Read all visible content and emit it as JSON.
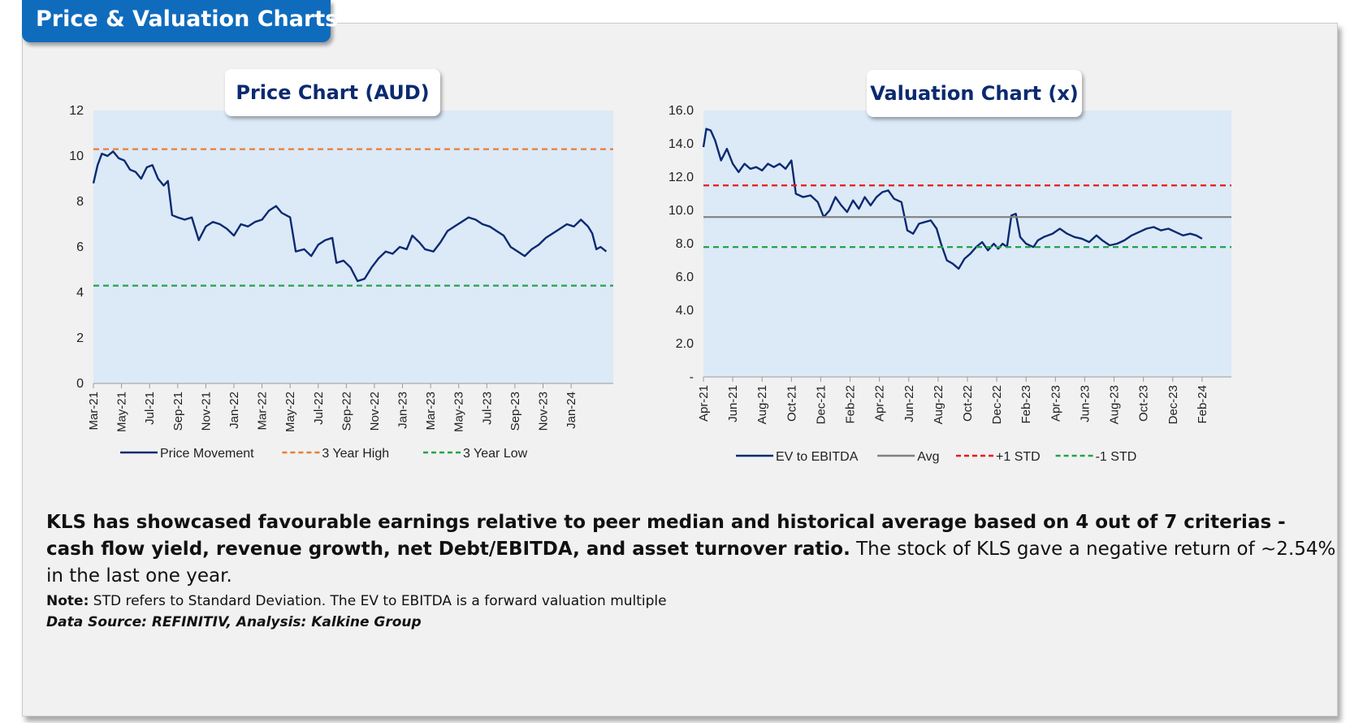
{
  "header": {
    "title": "Price & Valuation Charts"
  },
  "price_chart": {
    "title": "Price Chart (AUD)"
  },
  "valuation_chart": {
    "title": "Valuation Chart (x)"
  },
  "summary": {
    "bold_text": "KLS has showcased favourable earnings relative to peer median and historical average based on 4 out of 7 criterias - cash flow yield, revenue growth, net Debt/EBITDA, and asset turnover ratio.",
    "normal_text": " The stock of KLS gave a negative return of ~2.54% in the last one year."
  },
  "note": {
    "label": "Note:",
    "text": " STD refers to Standard Deviation. The EV to EBITDA is a forward valuation multiple"
  },
  "source": "Data Source: REFINITIV, Analysis: Kalkine Group",
  "colors": {
    "accent": "#0f6cbd",
    "plot_bg": "#dce9f7",
    "series": "#0b2a6f",
    "high": "#ed7d31",
    "low": "#22a34a",
    "avg": "#808080",
    "plus_std": "#e81b1b"
  },
  "chart_data": [
    {
      "type": "line",
      "title": "Price Chart (AUD)",
      "ylim": [
        0,
        12
      ],
      "y_ticks": [
        "0",
        "2",
        "4",
        "6",
        "8",
        "10",
        "12"
      ],
      "x_ticks": [
        "Mar-21",
        "May-21",
        "Jul-21",
        "Sep-21",
        "Nov-21",
        "Jan-22",
        "Mar-22",
        "May-22",
        "Jul-22",
        "Sep-22",
        "Nov-22",
        "Jan-23",
        "Mar-23",
        "May-23",
        "Jul-23",
        "Sep-23",
        "Nov-23",
        "Jan-24"
      ],
      "x_range_months": [
        0,
        37
      ],
      "series": [
        {
          "name": "Price Movement",
          "color": "#0b2a6f",
          "points": [
            [
              0,
              8.8
            ],
            [
              0.3,
              9.6
            ],
            [
              0.6,
              10.1
            ],
            [
              1.0,
              10.0
            ],
            [
              1.4,
              10.2
            ],
            [
              1.8,
              9.9
            ],
            [
              2.2,
              9.8
            ],
            [
              2.6,
              9.4
            ],
            [
              3.0,
              9.3
            ],
            [
              3.4,
              9.0
            ],
            [
              3.8,
              9.5
            ],
            [
              4.2,
              9.6
            ],
            [
              4.6,
              9.0
            ],
            [
              5.0,
              8.7
            ],
            [
              5.3,
              8.9
            ],
            [
              5.6,
              7.4
            ],
            [
              6.0,
              7.3
            ],
            [
              6.5,
              7.2
            ],
            [
              7.0,
              7.3
            ],
            [
              7.5,
              6.3
            ],
            [
              8.0,
              6.9
            ],
            [
              8.5,
              7.1
            ],
            [
              9.0,
              7.0
            ],
            [
              9.5,
              6.8
            ],
            [
              10.0,
              6.5
            ],
            [
              10.5,
              7.0
            ],
            [
              11.0,
              6.9
            ],
            [
              11.5,
              7.1
            ],
            [
              12.0,
              7.2
            ],
            [
              12.5,
              7.6
            ],
            [
              13.0,
              7.8
            ],
            [
              13.4,
              7.5
            ],
            [
              14.0,
              7.3
            ],
            [
              14.4,
              5.8
            ],
            [
              15.0,
              5.9
            ],
            [
              15.5,
              5.6
            ],
            [
              16.0,
              6.1
            ],
            [
              16.5,
              6.3
            ],
            [
              17.0,
              6.4
            ],
            [
              17.3,
              5.3
            ],
            [
              17.8,
              5.4
            ],
            [
              18.3,
              5.1
            ],
            [
              18.8,
              4.5
            ],
            [
              19.3,
              4.6
            ],
            [
              19.8,
              5.1
            ],
            [
              20.3,
              5.5
            ],
            [
              20.8,
              5.8
            ],
            [
              21.3,
              5.7
            ],
            [
              21.8,
              6.0
            ],
            [
              22.3,
              5.9
            ],
            [
              22.7,
              6.5
            ],
            [
              23.2,
              6.2
            ],
            [
              23.6,
              5.9
            ],
            [
              24.2,
              5.8
            ],
            [
              24.7,
              6.2
            ],
            [
              25.2,
              6.7
            ],
            [
              25.7,
              6.9
            ],
            [
              26.2,
              7.1
            ],
            [
              26.7,
              7.3
            ],
            [
              27.2,
              7.2
            ],
            [
              27.7,
              7.0
            ],
            [
              28.2,
              6.9
            ],
            [
              28.7,
              6.7
            ],
            [
              29.2,
              6.5
            ],
            [
              29.7,
              6.0
            ],
            [
              30.2,
              5.8
            ],
            [
              30.7,
              5.6
            ],
            [
              31.2,
              5.9
            ],
            [
              31.7,
              6.1
            ],
            [
              32.2,
              6.4
            ],
            [
              32.7,
              6.6
            ],
            [
              33.2,
              6.8
            ],
            [
              33.7,
              7.0
            ],
            [
              34.2,
              6.9
            ],
            [
              34.7,
              7.2
            ],
            [
              35.2,
              6.9
            ],
            [
              35.5,
              6.6
            ],
            [
              35.8,
              5.9
            ],
            [
              36.1,
              6.0
            ],
            [
              36.5,
              5.8
            ]
          ]
        },
        {
          "name": "3 Year High",
          "color": "#ed7d31",
          "value": 10.3,
          "dash": true
        },
        {
          "name": "3 Year Low",
          "color": "#22a34a",
          "value": 4.3,
          "dash": true
        }
      ]
    },
    {
      "type": "line",
      "title": "Valuation Chart (x)",
      "ylim": [
        0,
        16
      ],
      "y_ticks": [
        "-",
        "2.0",
        "4.0",
        "6.0",
        "8.0",
        "10.0",
        "12.0",
        "14.0",
        "16.0"
      ],
      "x_ticks": [
        "Apr-21",
        "Jun-21",
        "Aug-21",
        "Oct-21",
        "Dec-21",
        "Feb-22",
        "Apr-22",
        "Jun-22",
        "Aug-22",
        "Oct-22",
        "Dec-22",
        "Feb-23",
        "Apr-23",
        "Jun-23",
        "Aug-23",
        "Oct-23",
        "Dec-23",
        "Feb-24"
      ],
      "x_range_months": [
        0,
        36
      ],
      "series": [
        {
          "name": "EV to EBITDA",
          "color": "#0b2a6f",
          "points": [
            [
              0,
              13.8
            ],
            [
              0.2,
              14.9
            ],
            [
              0.5,
              14.8
            ],
            [
              0.8,
              14.2
            ],
            [
              1.2,
              13.0
            ],
            [
              1.6,
              13.7
            ],
            [
              2.0,
              12.8
            ],
            [
              2.4,
              12.3
            ],
            [
              2.8,
              12.8
            ],
            [
              3.2,
              12.5
            ],
            [
              3.6,
              12.6
            ],
            [
              4.0,
              12.4
            ],
            [
              4.4,
              12.8
            ],
            [
              4.8,
              12.6
            ],
            [
              5.2,
              12.8
            ],
            [
              5.6,
              12.5
            ],
            [
              6.0,
              13.0
            ],
            [
              6.3,
              11.0
            ],
            [
              6.8,
              10.8
            ],
            [
              7.3,
              10.9
            ],
            [
              7.8,
              10.5
            ],
            [
              8.2,
              9.6
            ],
            [
              8.6,
              10.0
            ],
            [
              9.0,
              10.8
            ],
            [
              9.4,
              10.3
            ],
            [
              9.8,
              9.9
            ],
            [
              10.2,
              10.6
            ],
            [
              10.6,
              10.1
            ],
            [
              11.0,
              10.8
            ],
            [
              11.4,
              10.3
            ],
            [
              11.8,
              10.8
            ],
            [
              12.2,
              11.1
            ],
            [
              12.6,
              11.2
            ],
            [
              13.0,
              10.7
            ],
            [
              13.5,
              10.5
            ],
            [
              13.9,
              8.8
            ],
            [
              14.3,
              8.6
            ],
            [
              14.7,
              9.2
            ],
            [
              15.1,
              9.3
            ],
            [
              15.5,
              9.4
            ],
            [
              15.9,
              8.9
            ],
            [
              16.2,
              8.0
            ],
            [
              16.6,
              7.0
            ],
            [
              17.0,
              6.8
            ],
            [
              17.4,
              6.5
            ],
            [
              17.8,
              7.1
            ],
            [
              18.2,
              7.4
            ],
            [
              18.6,
              7.8
            ],
            [
              19.0,
              8.1
            ],
            [
              19.4,
              7.6
            ],
            [
              19.8,
              8.0
            ],
            [
              20.1,
              7.7
            ],
            [
              20.4,
              8.0
            ],
            [
              20.7,
              7.8
            ],
            [
              21.0,
              9.7
            ],
            [
              21.3,
              9.8
            ],
            [
              21.6,
              8.4
            ],
            [
              22.0,
              8.0
            ],
            [
              22.5,
              7.8
            ],
            [
              22.8,
              8.2
            ],
            [
              23.2,
              8.4
            ],
            [
              23.8,
              8.6
            ],
            [
              24.3,
              8.9
            ],
            [
              24.8,
              8.6
            ],
            [
              25.3,
              8.4
            ],
            [
              25.8,
              8.3
            ],
            [
              26.3,
              8.1
            ],
            [
              26.8,
              8.5
            ],
            [
              27.2,
              8.2
            ],
            [
              27.7,
              7.9
            ],
            [
              28.2,
              8.0
            ],
            [
              28.7,
              8.2
            ],
            [
              29.2,
              8.5
            ],
            [
              29.7,
              8.7
            ],
            [
              30.2,
              8.9
            ],
            [
              30.7,
              9.0
            ],
            [
              31.2,
              8.8
            ],
            [
              31.7,
              8.9
            ],
            [
              32.2,
              8.7
            ],
            [
              32.7,
              8.5
            ],
            [
              33.2,
              8.6
            ],
            [
              33.6,
              8.5
            ],
            [
              34.0,
              8.3
            ]
          ]
        },
        {
          "name": "Avg",
          "color": "#808080",
          "value": 9.6,
          "dash": false
        },
        {
          "name": "+1 STD",
          "color": "#e81b1b",
          "value": 11.5,
          "dash": true
        },
        {
          "name": "-1 STD",
          "color": "#22a34a",
          "value": 7.8,
          "dash": true
        }
      ]
    }
  ]
}
